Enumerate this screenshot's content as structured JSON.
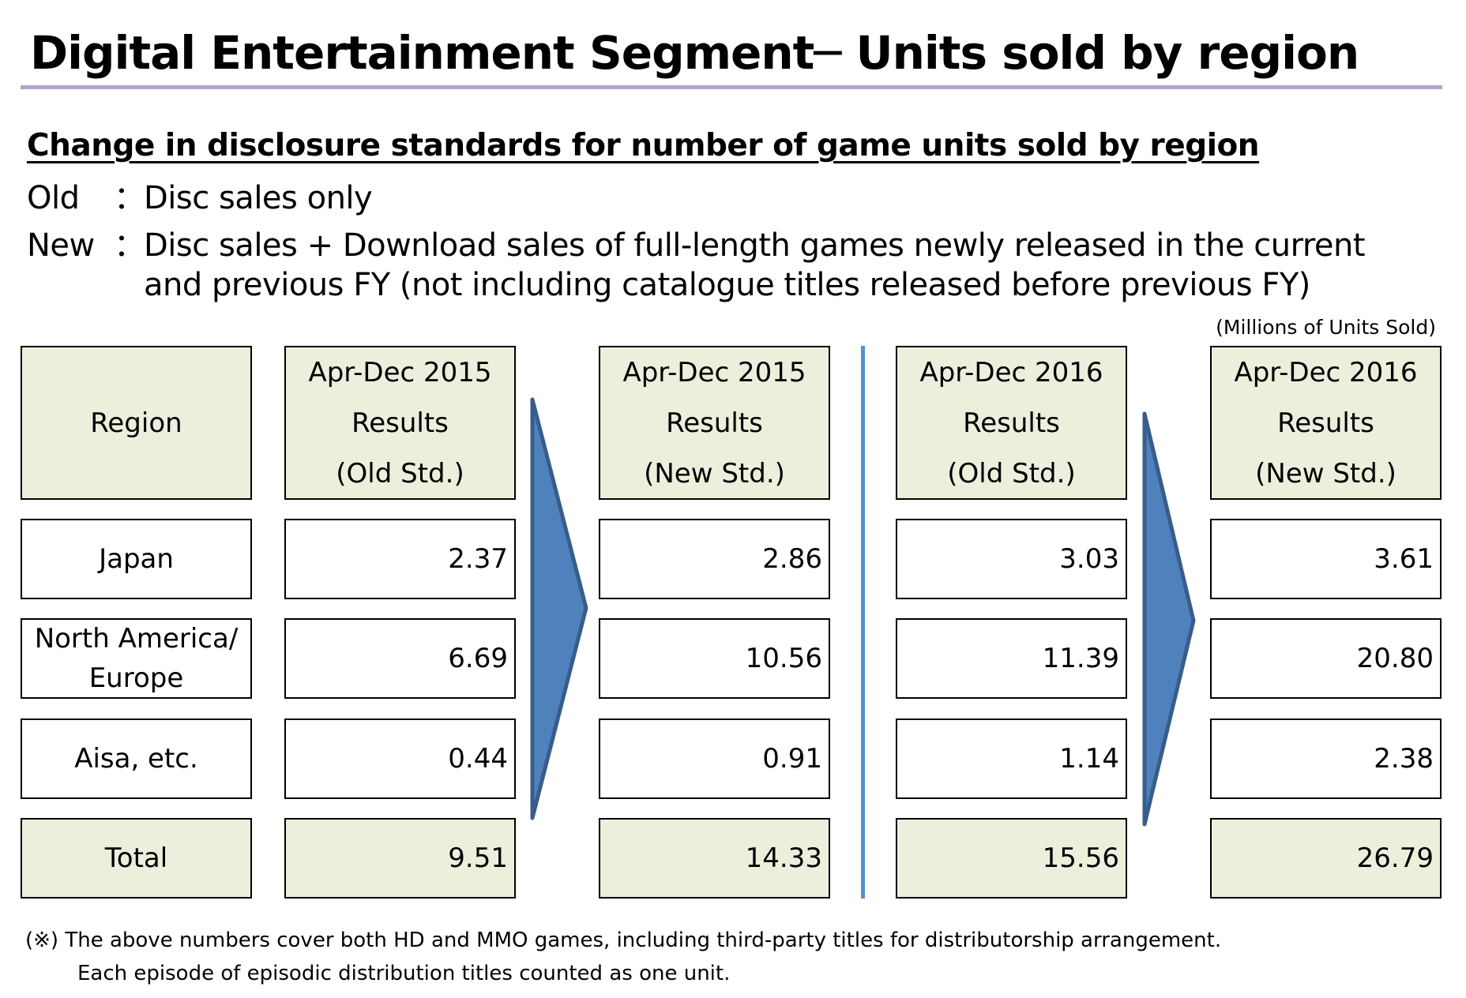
{
  "title": "Digital Entertainment Segment─ Units sold by region",
  "subheading": "Change in disclosure standards for number of game units sold by region",
  "definitions": {
    "old_term": "Old",
    "old_colon": "：",
    "old_text": "Disc sales only",
    "new_term": "New",
    "new_colon": "：",
    "new_text_line1": "Disc sales + Download sales of full-length games newly released in the current",
    "new_text_line2": "and previous FY (not including catalogue titles released before previous FY)"
  },
  "units_note": "(Millions of Units Sold)",
  "table": {
    "region_header": "Region",
    "columns": [
      {
        "line1": "Apr-Dec 2015",
        "line2": "Results",
        "line3": "(Old Std.)"
      },
      {
        "line1": "Apr-Dec 2015",
        "line2": "Results",
        "line3": "(New Std.)"
      },
      {
        "line1": "Apr-Dec 2016",
        "line2": "Results",
        "line3": "(Old Std.)"
      },
      {
        "line1": "Apr-Dec 2016",
        "line2": "Results",
        "line3": "(New Std.)"
      }
    ],
    "rows": [
      {
        "region_line1": "Japan",
        "region_line2": "",
        "values": [
          "2.37",
          "2.86",
          "3.03",
          "3.61"
        ]
      },
      {
        "region_line1": "North America/",
        "region_line2": "Europe",
        "values": [
          "6.69",
          "10.56",
          "11.39",
          "20.80"
        ]
      },
      {
        "region_line1": "Aisa, etc.",
        "region_line2": "",
        "values": [
          "0.44",
          "0.91",
          "1.14",
          "2.38"
        ]
      },
      {
        "region_line1": "Total",
        "region_line2": "",
        "values": [
          "9.51",
          "14.33",
          "15.56",
          "26.79"
        ]
      }
    ]
  },
  "footnote": {
    "line1": "(※) The above numbers cover both HD and MMO games, including third-party titles for distributorship arrangement.",
    "line2": "Each episode of episodic distribution titles counted as one unit."
  },
  "colors": {
    "title_rule": "#b5a4cc",
    "shaded_cell": "#ebf0dd",
    "arrow_fill": "#4f81bd",
    "arrow_stroke": "#385d8a",
    "divider": "#5b8fc7"
  }
}
